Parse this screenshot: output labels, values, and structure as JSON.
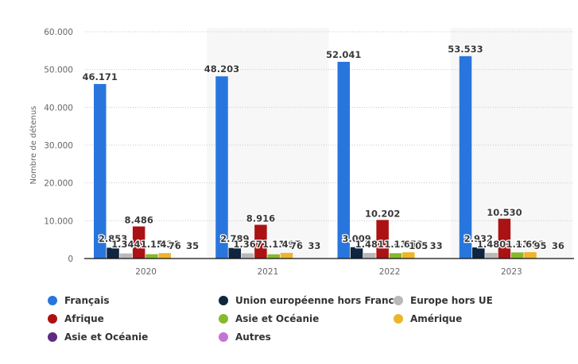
{
  "chart_data": {
    "type": "bar",
    "title": "",
    "xlabel": "",
    "ylabel": "Nombre de détenus",
    "ylim": [
      0,
      60000
    ],
    "yticks": [
      0,
      10000,
      20000,
      30000,
      40000,
      50000,
      60000
    ],
    "ytick_labels": [
      "0",
      "10.000",
      "20.000",
      "30.000",
      "40.000",
      "50.000",
      "60.000"
    ],
    "grid": true,
    "legend_position": "bottom",
    "categories": [
      "2020",
      "2021",
      "2022",
      "2023"
    ],
    "series": [
      {
        "name": "Français",
        "color": "#2876dd",
        "values": [
          46171,
          48203,
          52041,
          53533
        ],
        "labels": [
          "46.171",
          "48.203",
          "52.041",
          "53.533"
        ]
      },
      {
        "name": "Union européenne hors France",
        "color": "#0f2540",
        "values": [
          2853,
          2789,
          3009,
          2932
        ],
        "labels": [
          "2.853",
          "2.789",
          "3.009",
          "2.932"
        ]
      },
      {
        "name": "Europe hors UE",
        "color": "#b9b9b9",
        "values": [
          1344,
          1367,
          1481,
          1480
        ],
        "labels": [
          "1.344",
          "1.367",
          "1.481",
          "1.480"
        ]
      },
      {
        "name": "Afrique",
        "color": "#ab1214",
        "values": [
          8486,
          8916,
          10202,
          10530
        ],
        "labels": [
          "8.486",
          "8.916",
          "10.202",
          "10.530"
        ]
      },
      {
        "name": "Asie et Océanie",
        "color": "#86b92b",
        "values": [
          1150,
          1110,
          1410,
          1610
        ],
        "labels": [
          "1.15",
          "1.11",
          "1.41",
          "1.61"
        ]
      },
      {
        "name": "Amérique",
        "color": "#edb52b",
        "values": [
          1436,
          1497,
          1653,
          1691
        ],
        "labels": [
          "1.436",
          "1.497",
          "1.653",
          "1.691"
        ]
      },
      {
        "name": "Asie et Océanie",
        "color": "#5e2b7e",
        "values": [
          76,
          76,
          105,
          95
        ],
        "labels": [
          "76",
          "76",
          "105",
          "95"
        ]
      },
      {
        "name": "Autres",
        "color": "#c474d6",
        "values": [
          35,
          33,
          33,
          36
        ],
        "labels": [
          "35",
          "33",
          "33",
          "36"
        ]
      }
    ]
  },
  "legend": [
    {
      "label": "Français",
      "color": "#2876dd"
    },
    {
      "label": "Union européenne hors France",
      "color": "#0f2540"
    },
    {
      "label": "Europe hors UE",
      "color": "#b9b9b9"
    },
    {
      "label": "Afrique",
      "color": "#ab1214"
    },
    {
      "label": "Asie et Océanie",
      "color": "#86b92b"
    },
    {
      "label": "Amérique",
      "color": "#edb52b"
    },
    {
      "label": "Asie et Océanie",
      "color": "#5e2b7e"
    },
    {
      "label": "Autres",
      "color": "#c474d6"
    }
  ]
}
